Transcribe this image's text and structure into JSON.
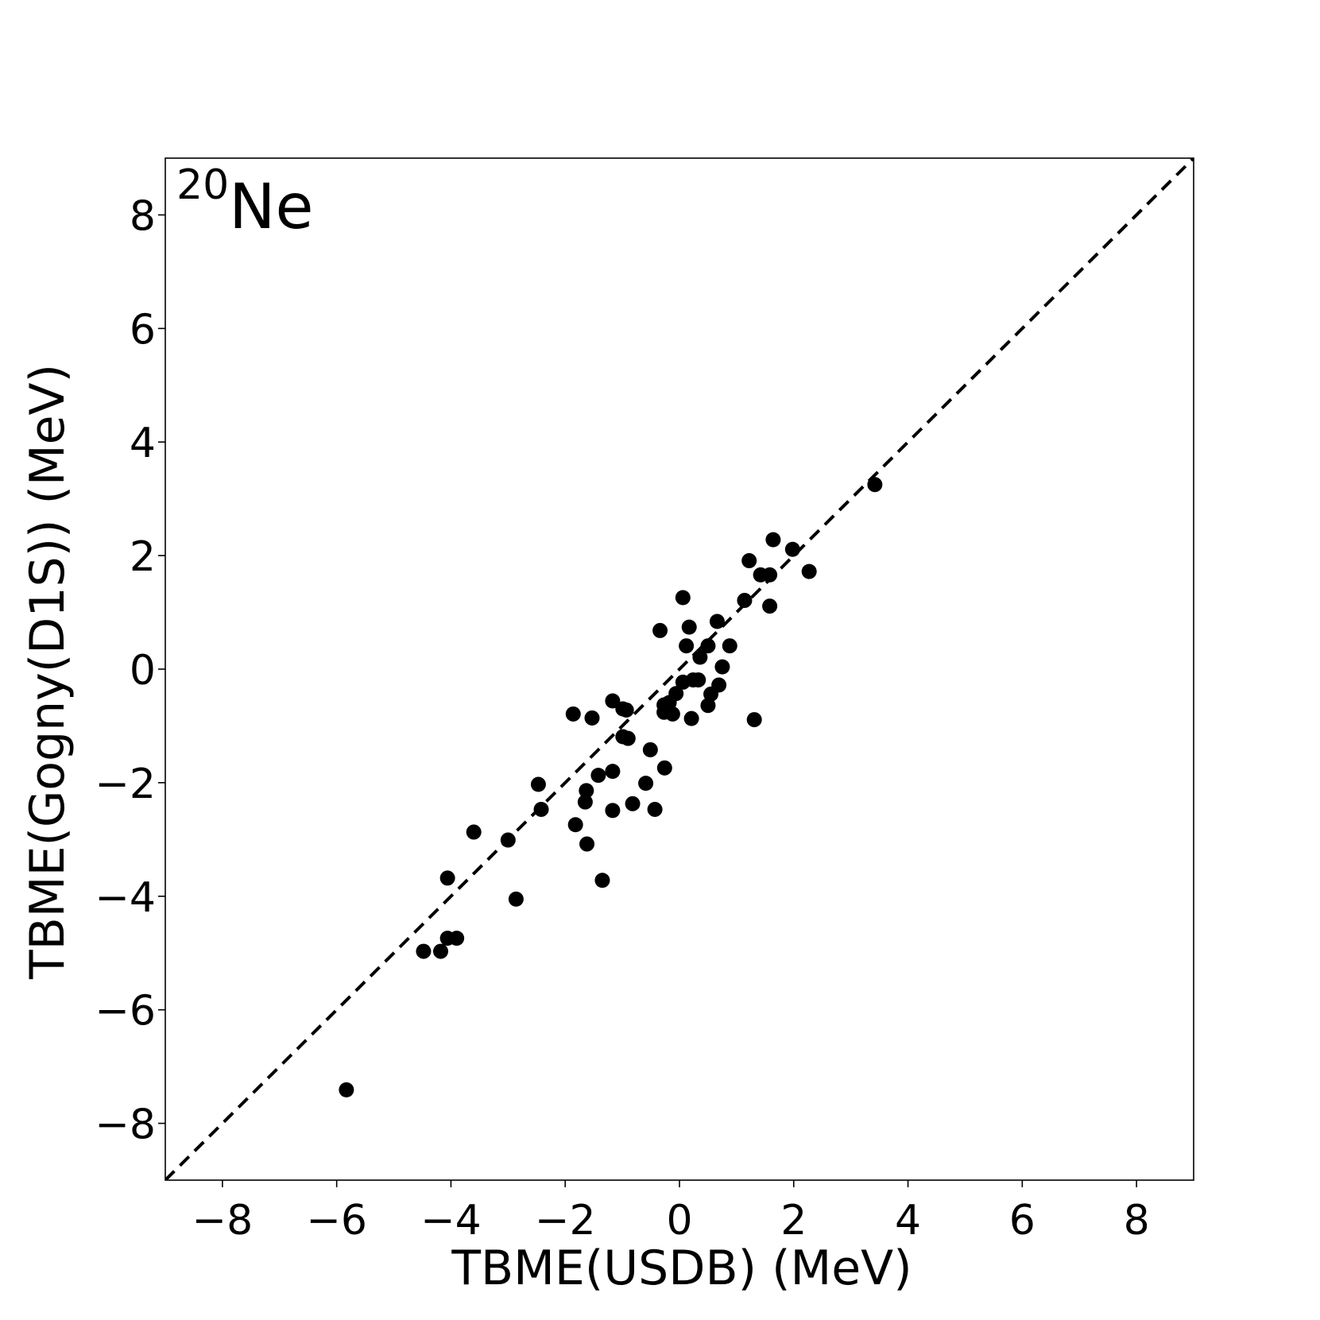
{
  "chart_data": {
    "type": "scatter",
    "title": "",
    "xlabel": "TBME(USDB) (MeV)",
    "ylabel": "TBME(Gogny(D1S)) (MeV)",
    "annotation": {
      "superscript": "20",
      "text": "Ne"
    },
    "xlim": [
      -9,
      9
    ],
    "ylim": [
      -9,
      9
    ],
    "xticks": [
      -8,
      -6,
      -4,
      -2,
      0,
      2,
      4,
      6,
      8
    ],
    "yticks": [
      -8,
      -6,
      -4,
      -2,
      0,
      2,
      4,
      6,
      8
    ],
    "xtick_labels": [
      "−8",
      "−6",
      "−4",
      "−2",
      "0",
      "2",
      "4",
      "6",
      "8"
    ],
    "ytick_labels": [
      "−8",
      "−6",
      "−4",
      "−2",
      "0",
      "2",
      "4",
      "6",
      "8"
    ],
    "grid": false,
    "reference_line": {
      "style": "dashed",
      "slope": 1,
      "intercept": 0,
      "color": "#000000"
    },
    "marker_color": "#000000",
    "points": [
      [
        -5.83,
        -7.41
      ],
      [
        -4.48,
        -4.97
      ],
      [
        -4.18,
        -4.97
      ],
      [
        -4.06,
        -4.74
      ],
      [
        -3.9,
        -4.74
      ],
      [
        -4.06,
        -3.68
      ],
      [
        -3.6,
        -2.87
      ],
      [
        -3.0,
        -3.01
      ],
      [
        -2.86,
        -4.05
      ],
      [
        -2.47,
        -2.03
      ],
      [
        -2.42,
        -2.47
      ],
      [
        -1.86,
        -0.79
      ],
      [
        -1.82,
        -2.74
      ],
      [
        -1.65,
        -2.34
      ],
      [
        -1.63,
        -2.14
      ],
      [
        -1.62,
        -3.08
      ],
      [
        -1.53,
        -0.86
      ],
      [
        -1.42,
        -1.87
      ],
      [
        -1.35,
        -3.72
      ],
      [
        -1.17,
        -0.56
      ],
      [
        -1.17,
        -1.8
      ],
      [
        -1.17,
        -2.49
      ],
      [
        -0.99,
        -0.7
      ],
      [
        -0.93,
        -0.72
      ],
      [
        -0.99,
        -1.19
      ],
      [
        -0.9,
        -1.22
      ],
      [
        -0.82,
        -2.37
      ],
      [
        -0.59,
        -2.01
      ],
      [
        -0.51,
        -1.42
      ],
      [
        -0.43,
        -2.47
      ],
      [
        -0.34,
        0.68
      ],
      [
        -0.27,
        -0.63
      ],
      [
        -0.26,
        -1.74
      ],
      [
        -0.27,
        -0.76
      ],
      [
        -0.18,
        -0.59
      ],
      [
        -0.12,
        -0.79
      ],
      [
        -0.06,
        -0.43
      ],
      [
        0.06,
        1.26
      ],
      [
        0.06,
        -0.23
      ],
      [
        0.12,
        0.41
      ],
      [
        0.17,
        0.74
      ],
      [
        0.21,
        -0.87
      ],
      [
        0.24,
        -0.19
      ],
      [
        0.33,
        -0.19
      ],
      [
        0.36,
        0.21
      ],
      [
        0.5,
        0.41
      ],
      [
        0.5,
        -0.64
      ],
      [
        0.55,
        -0.44
      ],
      [
        0.66,
        0.84
      ],
      [
        0.69,
        -0.28
      ],
      [
        0.75,
        0.04
      ],
      [
        0.88,
        0.41
      ],
      [
        1.14,
        1.21
      ],
      [
        1.22,
        1.91
      ],
      [
        1.31,
        -0.89
      ],
      [
        1.42,
        1.66
      ],
      [
        1.58,
        1.66
      ],
      [
        1.58,
        1.11
      ],
      [
        1.64,
        2.28
      ],
      [
        1.98,
        2.11
      ],
      [
        2.27,
        1.72
      ],
      [
        3.42,
        3.25
      ]
    ]
  }
}
